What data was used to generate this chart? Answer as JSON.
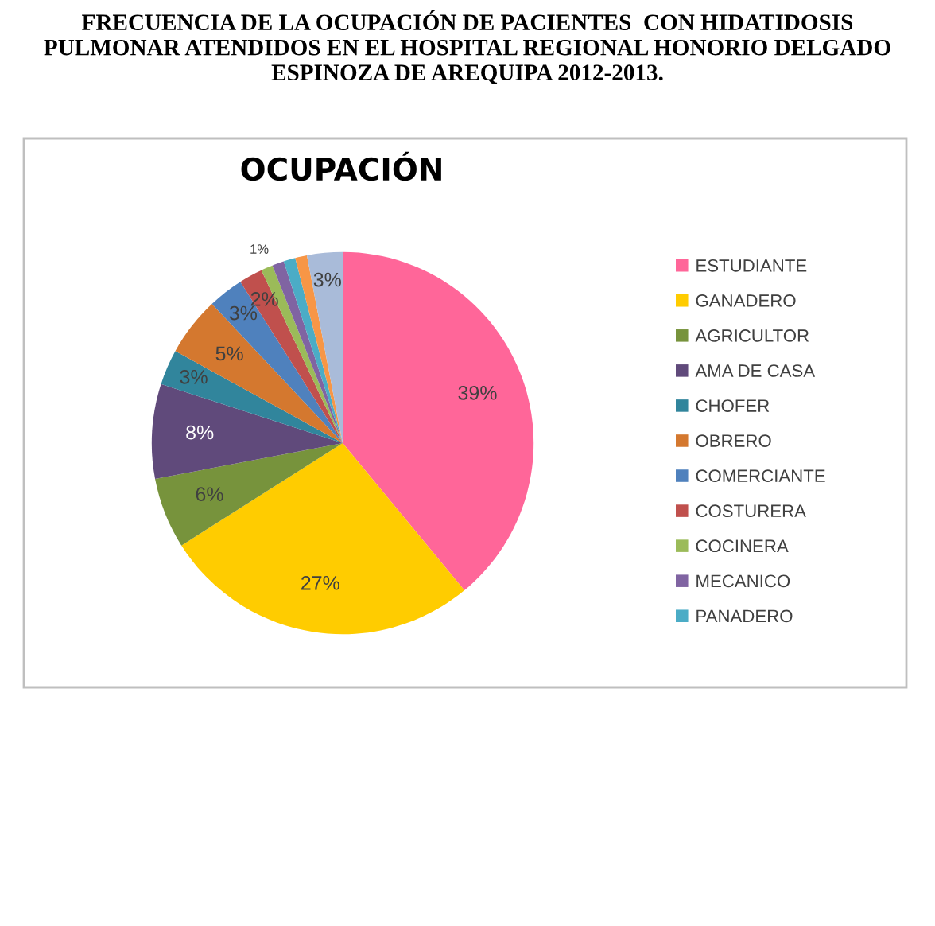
{
  "chart_data": {
    "type": "pie",
    "title": "OCUPACIÓN",
    "subtitle": "FRECUENCIA DE LA OCUPACIÓN DE PACIENTES  CON HIDATIDOSIS\nPULMONAR ATENDIDOS EN EL HOSPITAL REGIONAL HONORIO DELGADO\nESPINOZA DE AREQUIPA 2012-2013.",
    "categories": [
      "ESTUDIANTE",
      "GANADERO",
      "AGRICULTOR",
      "AMA DE CASA",
      "CHOFER",
      "OBRERO",
      "COMERCIANTE",
      "COSTURERA",
      "COCINERA",
      "MECANICO",
      "PANADERO",
      null,
      null
    ],
    "values": [
      39,
      27,
      6,
      8,
      3,
      5,
      3,
      2,
      1,
      1,
      1,
      1,
      3
    ],
    "value_labels": [
      "39%",
      "27%",
      "6%",
      "8%",
      "3%",
      "5%",
      "3%",
      "2%",
      "1%",
      null,
      null,
      null,
      "3%"
    ],
    "colors": [
      "#ff6699",
      "#ffcc00",
      "#77933c",
      "#604a7b",
      "#31859c",
      "#d4782f",
      "#4f81bd",
      "#c0504d",
      "#9bbb59",
      "#8064a2",
      "#4bacc6",
      "#f79646",
      "#a9bbd9"
    ],
    "legend": "right"
  }
}
